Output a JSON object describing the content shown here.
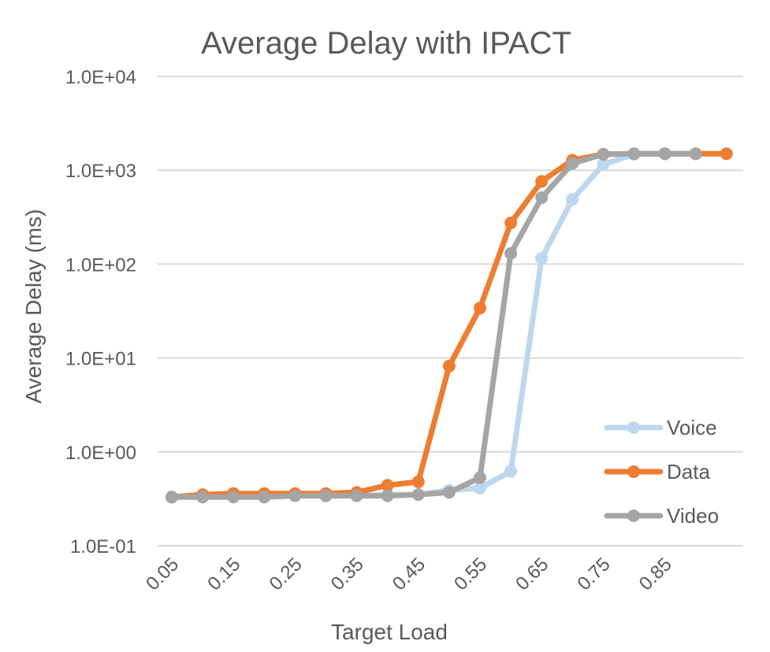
{
  "chart_data": {
    "type": "line",
    "title": "Average Delay with IPACT",
    "xlabel": "Target Load",
    "ylabel": "Average Delay (ms)",
    "y_scale": "log",
    "ylim": [
      0.1,
      10000
    ],
    "y_ticks": [
      "1.0E-01",
      "1.0E+00",
      "1.0E+01",
      "1.0E+02",
      "1.0E+03",
      "1.0E+04"
    ],
    "x": [
      0.05,
      0.1,
      0.15,
      0.2,
      0.25,
      0.3,
      0.35,
      0.4,
      0.45,
      0.5,
      0.55,
      0.6,
      0.65,
      0.7,
      0.75,
      0.8,
      0.85,
      0.9,
      0.95
    ],
    "x_tick_labels": [
      "0.05",
      "0.15",
      "0.25",
      "0.35",
      "0.45",
      "0.55",
      "0.65",
      "0.75",
      "0.85"
    ],
    "grid": true,
    "legend_position": "bottom-right",
    "series": [
      {
        "name": "Voice",
        "color": "#BDD7EE",
        "values": [
          0.33,
          0.33,
          0.34,
          0.34,
          0.34,
          0.34,
          0.34,
          0.35,
          0.35,
          0.39,
          0.41,
          0.62,
          115,
          490,
          1150,
          1480,
          1500,
          1500,
          null
        ]
      },
      {
        "name": "Data",
        "color": "#ED7D31",
        "values": [
          0.33,
          0.35,
          0.36,
          0.36,
          0.36,
          0.36,
          0.37,
          0.44,
          0.48,
          8.2,
          34,
          275,
          760,
          1280,
          1480,
          1500,
          1500,
          1500,
          1500
        ]
      },
      {
        "name": "Video",
        "color": "#A5A5A5",
        "values": [
          0.33,
          0.33,
          0.33,
          0.33,
          0.34,
          0.34,
          0.34,
          0.34,
          0.35,
          0.37,
          0.53,
          130,
          510,
          1180,
          1480,
          1500,
          1500,
          1500,
          null
        ]
      }
    ]
  }
}
